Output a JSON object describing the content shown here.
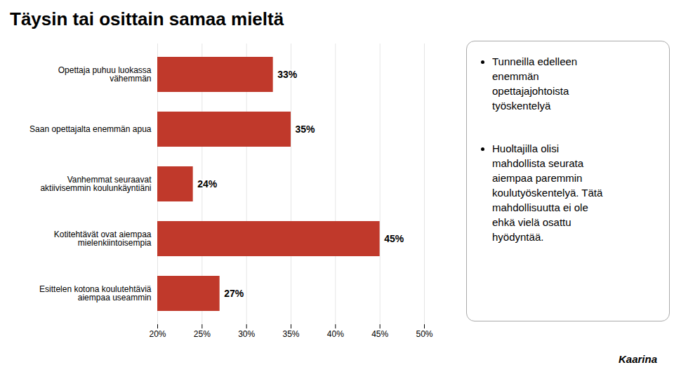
{
  "chart_data": {
    "type": "bar",
    "orientation": "horizontal",
    "title": "Täysin tai osittain samaa mieltä",
    "categories": [
      "Opettaja puhuu luokassa\nvähemmän",
      "Saan opettajalta enemmän apua",
      "Vanhemmat seuraavat\naktiivisemmin koulunkäyntiäni",
      "Kotitehtävät ovat aiempaa\nmielenkiintoisempia",
      "Esittelen kotona koulutehtäviä\naiempaa useammin"
    ],
    "values": [
      33,
      35,
      24,
      45,
      27
    ],
    "value_labels": [
      "33%",
      "35%",
      "24%",
      "45%",
      "27%"
    ],
    "color": "#C0392B",
    "xlim": [
      20,
      50
    ],
    "xticks": [
      {
        "value": 20,
        "label": "20%"
      },
      {
        "value": 25,
        "label": "25%"
      },
      {
        "value": 30,
        "label": "30%"
      },
      {
        "value": 35,
        "label": "35%"
      },
      {
        "value": 40,
        "label": "40%"
      },
      {
        "value": 45,
        "label": "45%"
      },
      {
        "value": 50,
        "label": "50%"
      }
    ],
    "grid": true,
    "data_labels": true,
    "annotations": [
      "Tunneilla edelleen\nenemmän\nopettajajohtoista\ntyöskentelyä",
      "Huoltajilla olisi\nmahdollista seurata\naiempaa paremmin\nkoulutyöskentelyä. Tätä\nmahdollisuutta ei ole\nehkä vielä osattu\nhyödyntää.",
      "Kaarina"
    ]
  }
}
